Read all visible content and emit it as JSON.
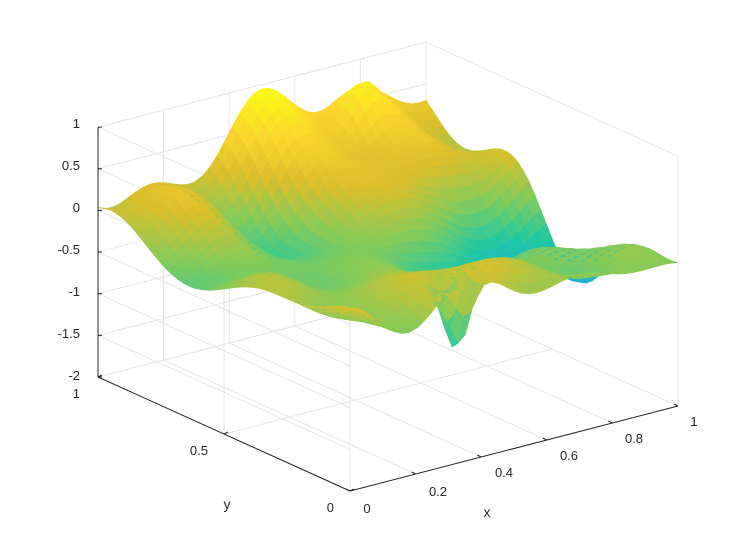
{
  "chart_data": {
    "type": "surface",
    "title": "",
    "xlabel": "x",
    "ylabel": "y",
    "zlabel": "",
    "xlim": [
      0,
      1
    ],
    "ylim": [
      0,
      1
    ],
    "zlim": [
      -2,
      1
    ],
    "xticks": [
      "0",
      "0.2",
      "0.4",
      "0.6",
      "0.8",
      "1"
    ],
    "yticks": [
      "0",
      "0.5",
      "1"
    ],
    "zticks": [
      "1",
      "0.5",
      "0",
      "-0.5",
      "-1",
      "-1.5",
      "-2"
    ],
    "grid": true,
    "colormap": "parula",
    "colormap_colors": [
      "#3e26a8",
      "#2f6ff0",
      "#1fa9e0",
      "#1fc8a5",
      "#85cb59",
      "#dcbf2c",
      "#fbd52d",
      "#f9fb15"
    ],
    "z_range_shown": [
      -1.9,
      0.95
    ],
    "description": "random rough surface over the unit square"
  }
}
